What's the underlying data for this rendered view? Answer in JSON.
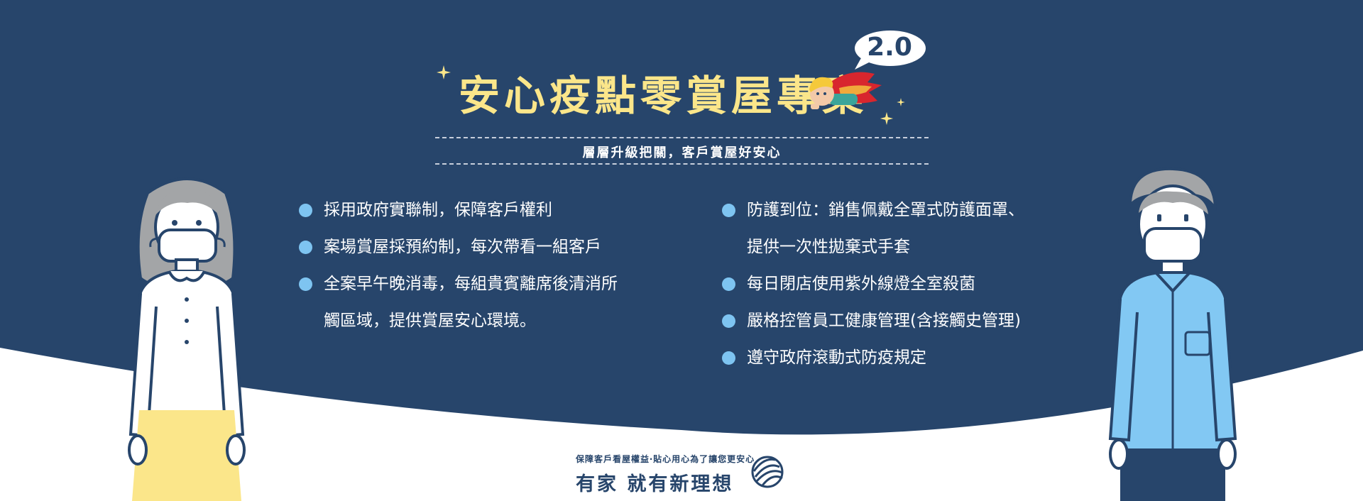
{
  "banner": {
    "title": "安心疫點零賞屋專案",
    "version_badge": "2.0",
    "subtitle": "層層升級把關，客戶賞屋好安心",
    "left_bullets": [
      {
        "text": "採用政府實聯制，保障客戶權利",
        "continuation": ""
      },
      {
        "text": "案場賞屋採預約制，每次帶看一組客戶",
        "continuation": ""
      },
      {
        "text": "全案早午晚消毒，每組貴賓離席後清消所",
        "continuation": "觸區域，提供賞屋安心環境。"
      }
    ],
    "right_bullets": [
      {
        "text": "防護到位：銷售佩戴全罩式防護面罩、",
        "continuation": "提供一次性拋棄式手套"
      },
      {
        "text": "每日閉店使用紫外線燈全室殺菌",
        "continuation": ""
      },
      {
        "text": "嚴格控管員工健康管理(含接觸史管理)",
        "continuation": ""
      },
      {
        "text": "遵守政府滾動式防疫規定",
        "continuation": ""
      }
    ],
    "footer_tagline": "保障客戶看屋權益‧貼心用心為了讓您更安心",
    "footer_brand": "有家 就有新理想",
    "icons": [
      "sparkle-icon",
      "superhero-icon",
      "globe-logo-icon",
      "bullet-dot-icon"
    ],
    "colors": {
      "navy": "#27456b",
      "title_yellow": "#fbe68a",
      "bullet_blue": "#7ec4f1",
      "shirt_blue": "#82c8f3",
      "skirt_yellow": "#fbe68a"
    }
  }
}
